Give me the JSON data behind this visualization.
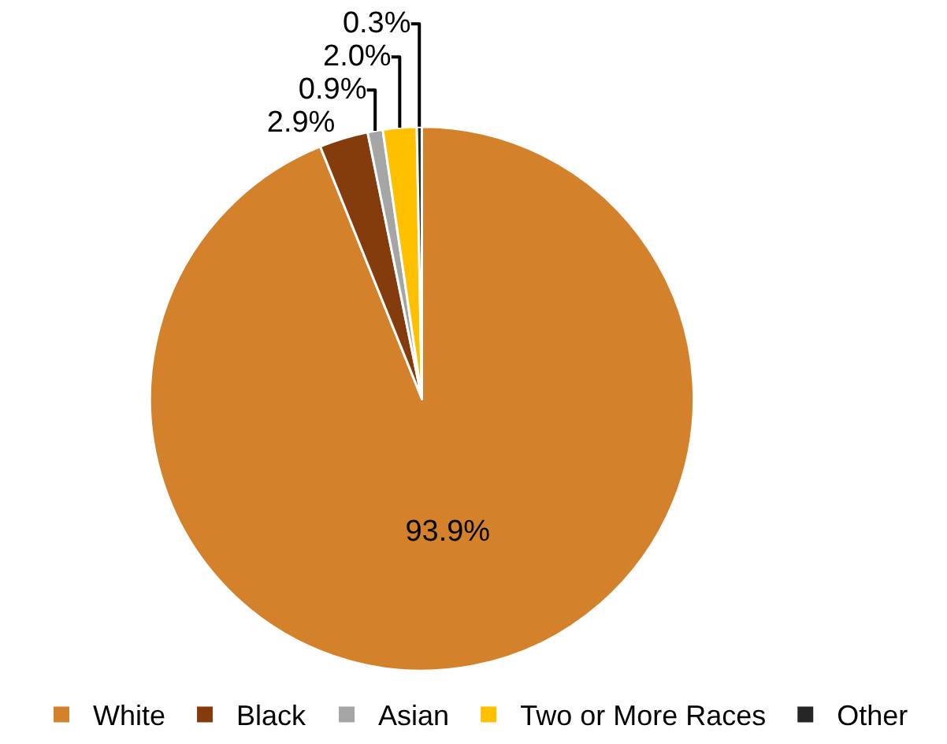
{
  "chart_data": {
    "type": "pie",
    "categories": [
      "White",
      "Black",
      "Asian",
      "Two or More Races",
      "Other"
    ],
    "values": [
      93.9,
      2.9,
      0.9,
      2.0,
      0.3
    ],
    "value_labels": [
      "93.9%",
      "2.9%",
      "0.9%",
      "2.0%",
      "0.3%"
    ],
    "colors": [
      "#d4812c",
      "#843c0c",
      "#a5a5a5",
      "#ffc000",
      "#262626"
    ],
    "legend": "bottom"
  }
}
